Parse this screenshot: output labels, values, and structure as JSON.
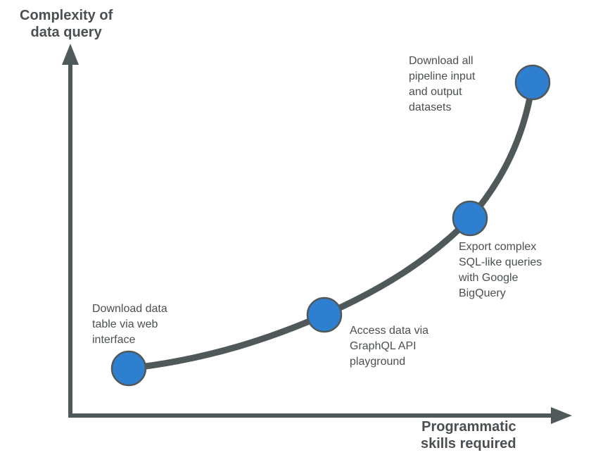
{
  "diagram": {
    "y_axis_title": "Complexity of\ndata query",
    "x_axis_title": "Programmatic\nskills required",
    "colors": {
      "axis": "#50595a",
      "curve": "#50595a",
      "point_fill": "#2f7fd1",
      "point_stroke": "#50595a",
      "text": "#4a4f52"
    },
    "steps": [
      {
        "label": "Download data\ntable via web\ninterface"
      },
      {
        "label": "Access data via\nGraphQL API\nplayground"
      },
      {
        "label": "Export complex\nSQL-like queries\nwith Google\nBigQuery"
      },
      {
        "label": "Download all\npipeline input\nand output\ndatasets"
      }
    ]
  }
}
